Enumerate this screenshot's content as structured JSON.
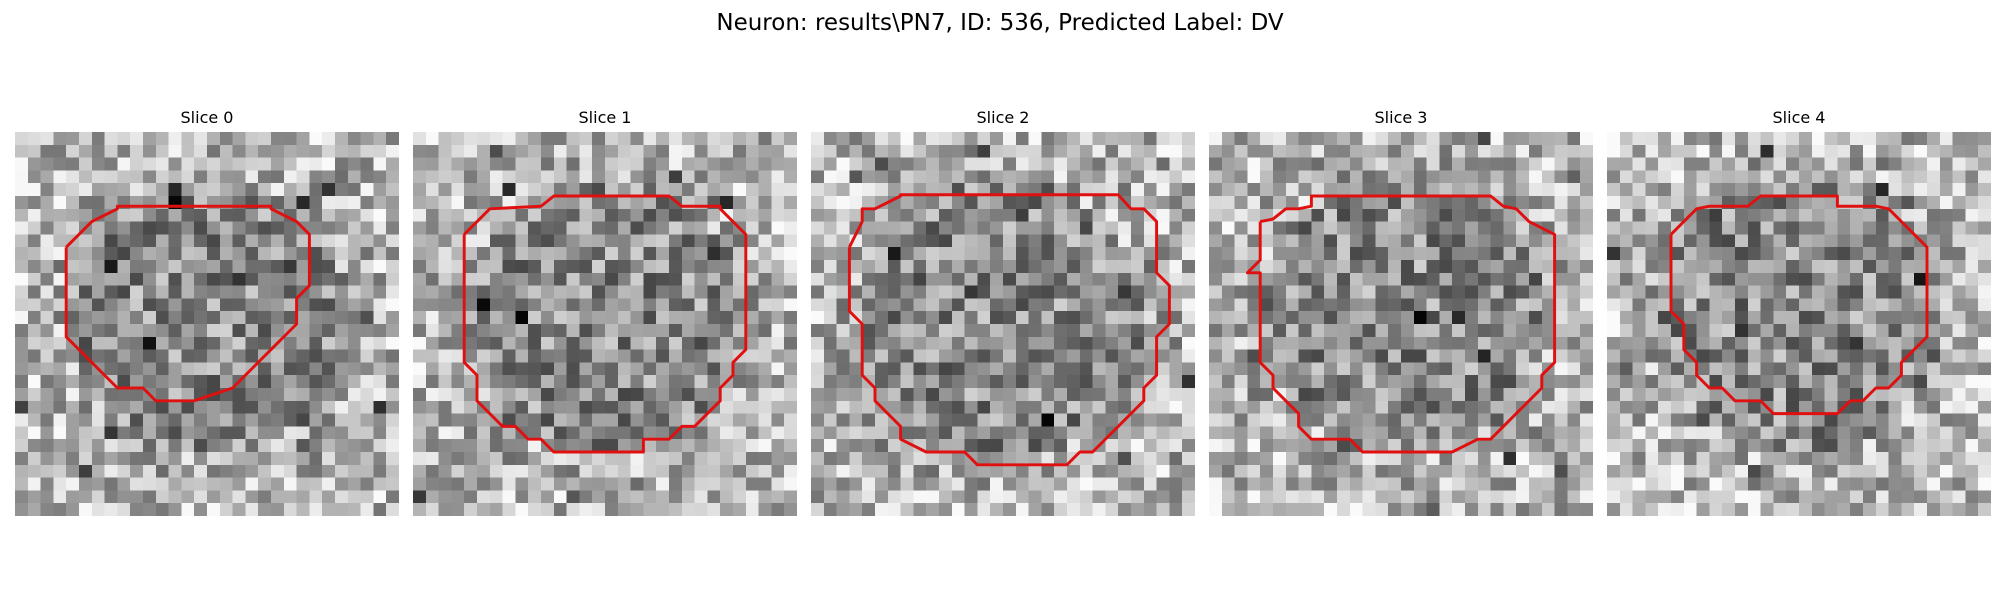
{
  "figure": {
    "title": "Neuron: results\\PN7, ID: 536, Predicted Label: DV",
    "overlay_color": "#e01010",
    "colormap": "gray",
    "slices": [
      {
        "label": "Slice 0"
      },
      {
        "label": "Slice 1"
      },
      {
        "label": "Slice 2"
      },
      {
        "label": "Slice 3"
      },
      {
        "label": "Slice 4"
      }
    ]
  }
}
